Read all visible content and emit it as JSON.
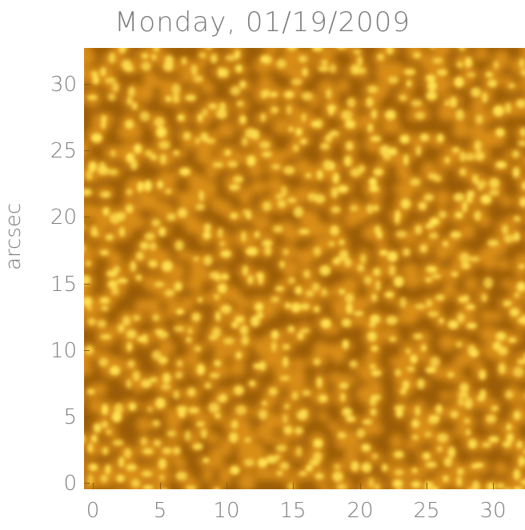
{
  "title": "Monday, 01/19/2009",
  "ylabel": "arcsec",
  "y_ticks": [
    "0",
    "5",
    "10",
    "15",
    "20",
    "25",
    "30"
  ],
  "x_ticks": [
    "0",
    "5",
    "10",
    "15",
    "20",
    "25",
    "30"
  ],
  "colors": {
    "dark": "#9a5c08",
    "mid": "#d98e14",
    "bright": "#ffe250"
  }
}
